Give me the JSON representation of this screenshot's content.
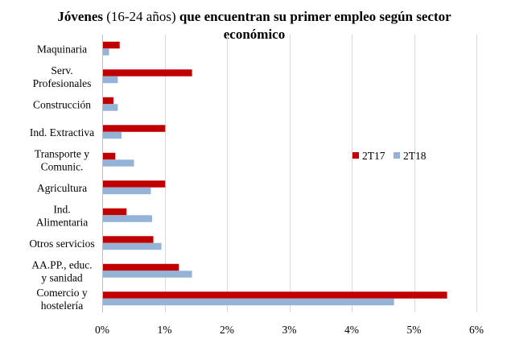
{
  "chart_data": {
    "type": "bar",
    "orientation": "horizontal",
    "title_part1": "Jóvenes",
    "title_part2": "(16-24 años)",
    "title_part3": "que encuentran su primer empleo según sector",
    "title_line2": "económico",
    "xlabel": "",
    "ylabel": "",
    "xlim": [
      0,
      0.06
    ],
    "x_ticks": [
      0,
      0.01,
      0.02,
      0.03,
      0.04,
      0.05,
      0.06
    ],
    "x_tick_labels": [
      "0%",
      "1%",
      "2%",
      "3%",
      "4%",
      "5%",
      "6%"
    ],
    "grid": true,
    "legend_position": "right-middle",
    "categories": [
      [
        "Maquinaria"
      ],
      [
        "Serv.",
        "Profesionales"
      ],
      [
        "Construcción"
      ],
      [
        "Ind. Extractiva"
      ],
      [
        "Transporte y",
        "Comunic."
      ],
      [
        "Agricultura"
      ],
      [
        "Ind.",
        "Alimentaria"
      ],
      [
        "Otros servicios"
      ],
      [
        "AA.PP., educ.",
        "y sanidad"
      ],
      [
        "Comercio y",
        "hostelería"
      ]
    ],
    "series": [
      {
        "name": "2T17",
        "color": "#c00000",
        "values": [
          0.0028,
          0.0144,
          0.0018,
          0.0101,
          0.0021,
          0.0101,
          0.0039,
          0.0082,
          0.0123,
          0.0553
        ]
      },
      {
        "name": "2T18",
        "color": "#95b3d7",
        "values": [
          0.0011,
          0.0025,
          0.0025,
          0.0031,
          0.0051,
          0.0078,
          0.008,
          0.0095,
          0.0144,
          0.0468
        ]
      }
    ]
  }
}
